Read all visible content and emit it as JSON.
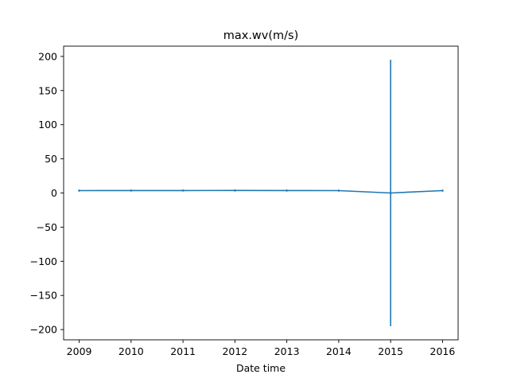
{
  "chart_data": {
    "type": "line",
    "title": "max.wv(m/s)",
    "xlabel": "Date time",
    "ylabel": "",
    "x": [
      "2009",
      "2010",
      "2011",
      "2012",
      "2013",
      "2014",
      "2015",
      "2016"
    ],
    "series": [
      {
        "values": [
          3.5,
          3.6,
          3.6,
          3.7,
          3.6,
          3.5,
          0,
          3.5
        ],
        "error": [
          1.3,
          1.3,
          1.3,
          1.3,
          1.3,
          1.2,
          195,
          1.3
        ],
        "color": "#1f77b4"
      }
    ],
    "xlim": [
      2008.7,
      2016.3
    ],
    "ylim": [
      -215,
      215
    ],
    "yticks": [
      -200,
      -150,
      -100,
      -50,
      0,
      50,
      100,
      150,
      200
    ],
    "ytick_labels": [
      "−200",
      "−150",
      "−100",
      "−50",
      "0",
      "50",
      "100",
      "150",
      "200"
    ],
    "grid": false,
    "legend": "none"
  }
}
